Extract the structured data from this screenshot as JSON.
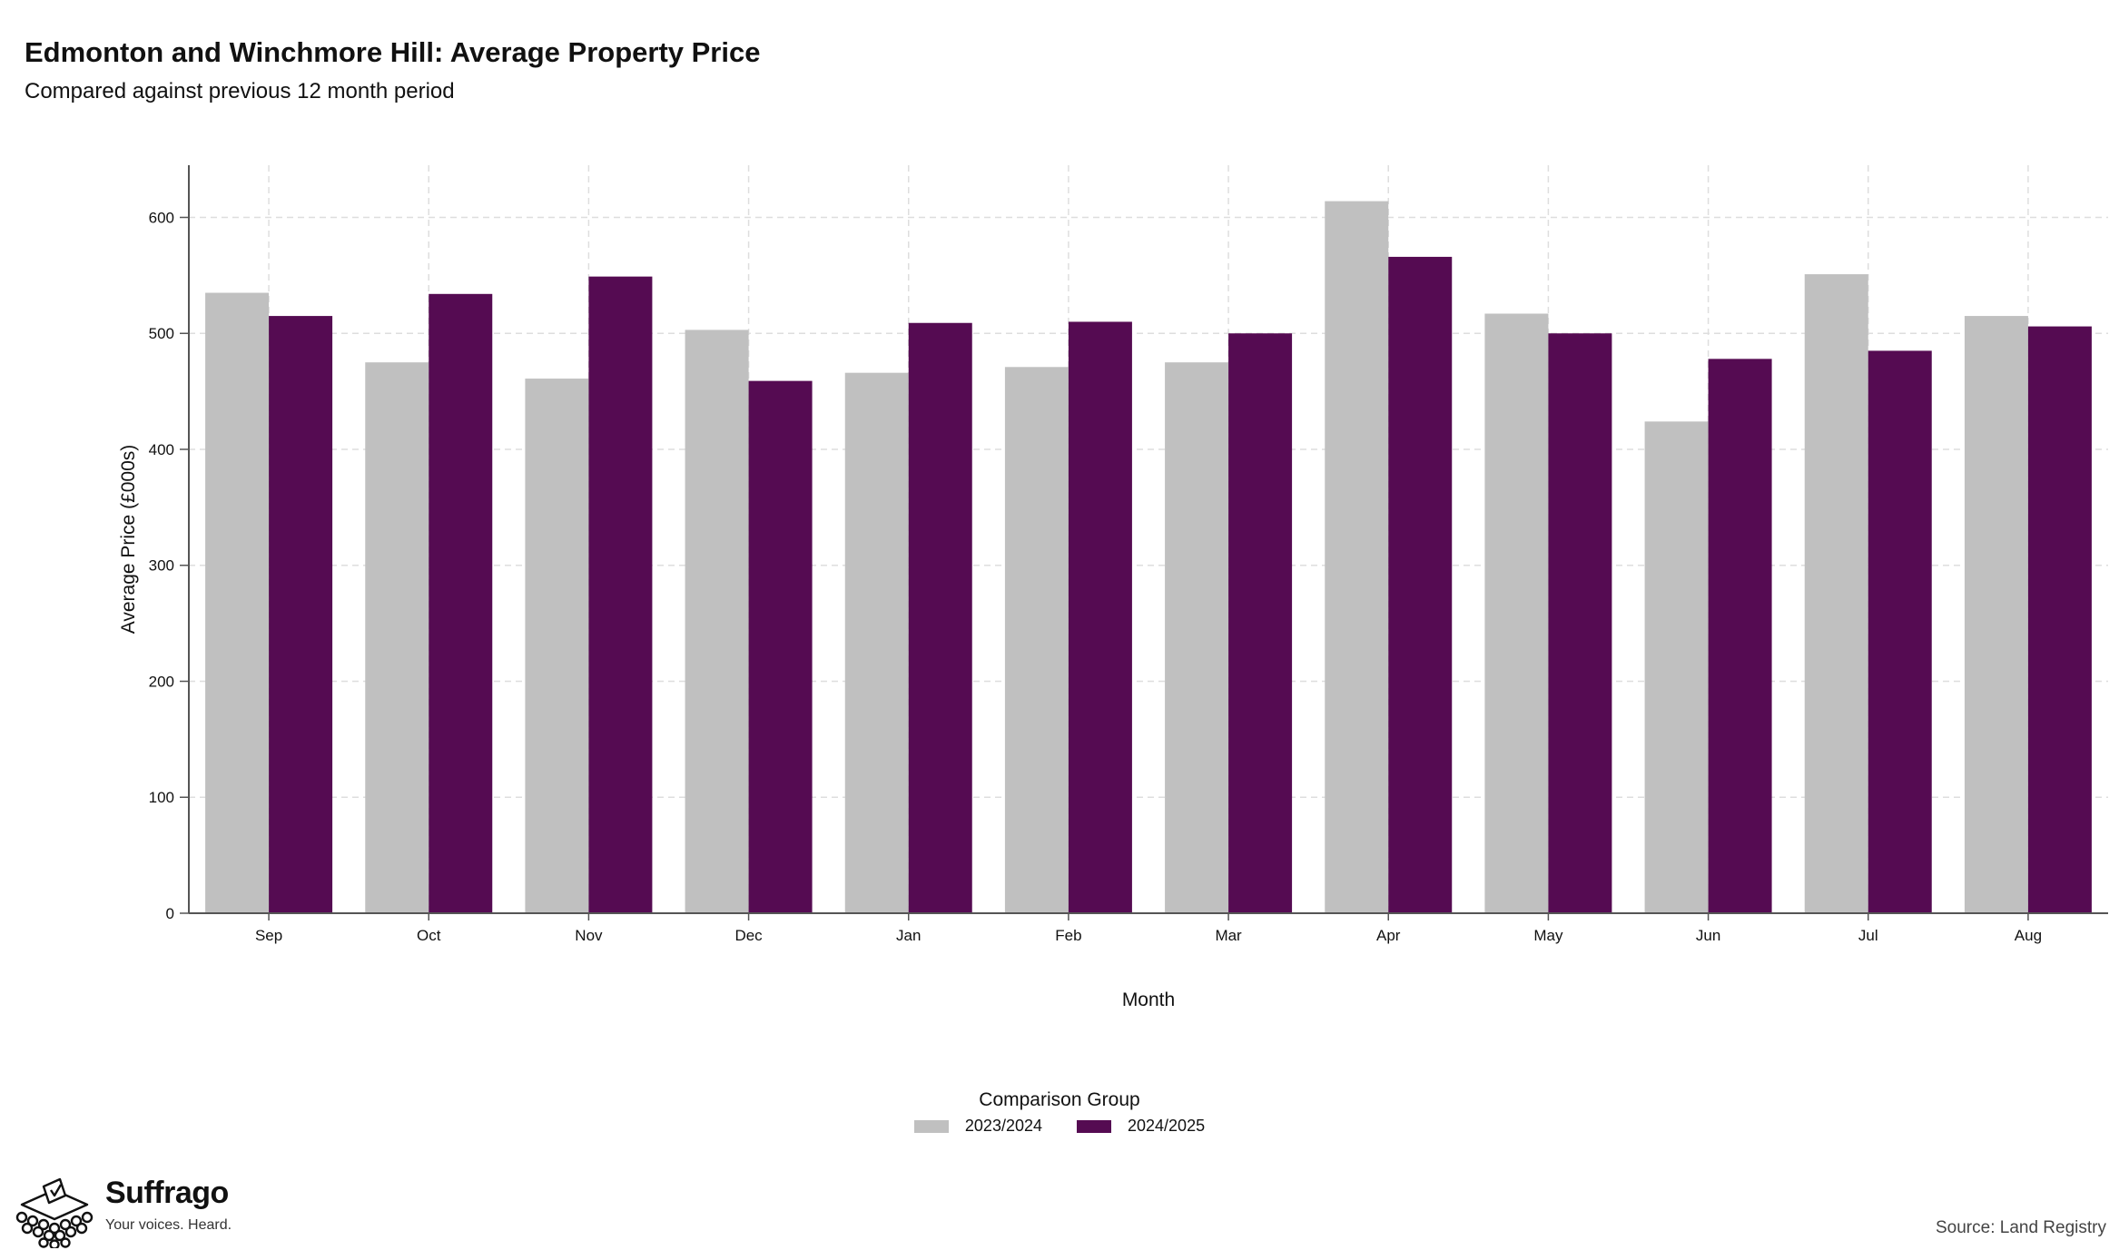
{
  "header": {
    "title": "Edmonton and Winchmore Hill: Average Property Price",
    "subtitle": "Compared against previous 12 month period"
  },
  "chart_data": {
    "type": "bar",
    "categories": [
      "Sep",
      "Oct",
      "Nov",
      "Dec",
      "Jan",
      "Feb",
      "Mar",
      "Apr",
      "May",
      "Jun",
      "Jul",
      "Aug"
    ],
    "series": [
      {
        "name": "2023/2024",
        "color": "#c0c0c0",
        "values": [
          535,
          475,
          461,
          503,
          466,
          471,
          475,
          614,
          517,
          424,
          551,
          515
        ]
      },
      {
        "name": "2024/2025",
        "color": "#550b52",
        "values": [
          515,
          534,
          549,
          459,
          509,
          510,
          500,
          566,
          500,
          478,
          485,
          506
        ]
      }
    ],
    "xlabel": "Month",
    "ylabel": "Average Price (£000s)",
    "ylim": [
      0,
      645
    ],
    "yticks": [
      0,
      100,
      200,
      300,
      400,
      500,
      600
    ],
    "grid": true,
    "legend": {
      "title": "Comparison Group",
      "position": "bottom"
    }
  },
  "branding": {
    "name": "Suffrago",
    "tagline": "Your voices. Heard.",
    "icon": "ballot-box-icon"
  },
  "footer": {
    "source": "Source: Land Registry"
  }
}
